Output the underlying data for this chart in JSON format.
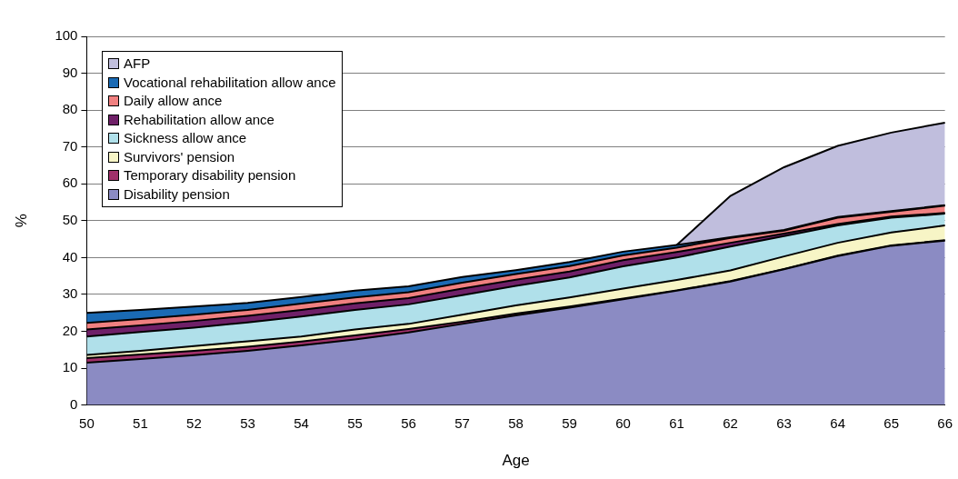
{
  "chart_data": {
    "type": "area",
    "stacked": true,
    "xlabel": "Age",
    "ylabel": "%",
    "categories": [
      "50",
      "51",
      "52",
      "53",
      "54",
      "55",
      "56",
      "57",
      "58",
      "59",
      "60",
      "61",
      "62",
      "63",
      "64",
      "65",
      "66"
    ],
    "ylim": [
      0,
      100
    ],
    "yticks": [
      0,
      10,
      20,
      30,
      40,
      50,
      60,
      70,
      80,
      90,
      100
    ],
    "grid": "y",
    "legend": "top left",
    "series": [
      {
        "name": "Disability pension",
        "color": "#8b8bc3",
        "values": [
          11.5,
          12.5,
          13.5,
          14.7,
          16.2,
          17.8,
          19.7,
          22,
          24.3,
          26.4,
          28.7,
          31,
          33.5,
          36.8,
          40.4,
          43.2,
          44.6
        ]
      },
      {
        "name": "Temporary disability pension",
        "color": "#a0306a",
        "values": [
          1.2,
          1.2,
          1.2,
          1.1,
          1.0,
          1.1,
          0.9,
          0.6,
          0.5,
          0.3,
          0.2,
          0.1,
          0.1,
          0.1,
          0.1,
          0.1,
          0.1
        ]
      },
      {
        "name": "Survivors' pension",
        "color": "#f7f5c6",
        "values": [
          0.9,
          1.0,
          1.3,
          1.5,
          1.4,
          1.6,
          1.4,
          1.9,
          2.2,
          2.5,
          2.7,
          2.8,
          2.9,
          3.4,
          3.5,
          3.5,
          4.0
        ]
      },
      {
        "name": "Sickness allow ance",
        "color": "#b0e0ea",
        "values": [
          5.0,
          5.1,
          5.0,
          5.1,
          5.4,
          5.3,
          5.3,
          5.3,
          5.3,
          5.4,
          6.0,
          6.1,
          6.5,
          5.5,
          4.7,
          4.0,
          3.2
        ]
      },
      {
        "name": "Rehabilitation allow ance",
        "color": "#6f2068",
        "values": [
          1.9,
          1.8,
          1.8,
          1.8,
          1.8,
          1.8,
          1.7,
          1.8,
          1.7,
          1.6,
          1.7,
          1.5,
          1.0,
          0.7,
          0.4,
          0.3,
          0.2
        ]
      },
      {
        "name": "Daily allow ance",
        "color": "#f08080",
        "values": [
          1.8,
          1.7,
          1.7,
          1.6,
          1.7,
          1.6,
          1.6,
          1.6,
          1.5,
          1.5,
          1.3,
          1.2,
          1.3,
          0.8,
          1.7,
          1.3,
          2.0
        ]
      },
      {
        "name": "Vocational rehabilitation allow ance",
        "color": "#1a6ab4",
        "values": [
          2.7,
          2.5,
          2.2,
          1.9,
          1.8,
          1.8,
          1.6,
          1.5,
          1.1,
          1.1,
          1.0,
          0.7,
          0.2,
          0.2,
          0.2,
          0.2,
          0.1
        ]
      },
      {
        "name": "AFP",
        "color": "#c0bedd",
        "values": [
          null,
          null,
          null,
          null,
          null,
          null,
          null,
          null,
          null,
          null,
          null,
          0,
          11.2,
          17.0,
          19.3,
          21.3,
          22.4
        ]
      }
    ]
  }
}
